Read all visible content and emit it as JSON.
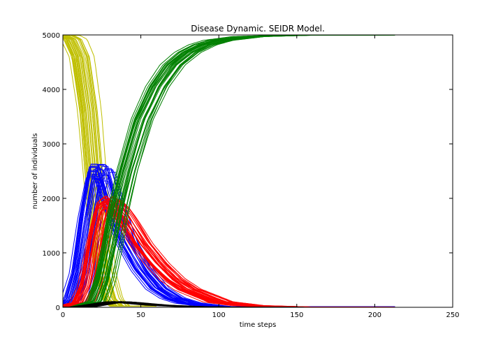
{
  "chart_data": {
    "type": "line",
    "title": "Disease Dynamic. SEIDR Model.",
    "xlabel": "time steps",
    "ylabel": "number of individuals",
    "xlim": [
      0,
      250
    ],
    "ylim": [
      0,
      5000
    ],
    "xticks": [
      "0",
      "50",
      "100",
      "150",
      "200",
      "250"
    ],
    "yticks": [
      "0",
      "1000",
      "2000",
      "3000",
      "4000",
      "5000"
    ],
    "grid": false,
    "legend": "none",
    "runs": 30,
    "series": [
      {
        "key": "S",
        "color": "#bfbf00",
        "x": [
          0,
          5,
          10,
          15,
          20,
          25,
          30,
          35
        ],
        "values": [
          4990,
          4920,
          4600,
          3600,
          1900,
          650,
          150,
          20
        ]
      },
      {
        "key": "E",
        "color": "#0000ff",
        "x": [
          0,
          5,
          10,
          15,
          20,
          25,
          30,
          40,
          50,
          60,
          70,
          80,
          100
        ],
        "values": [
          10,
          150,
          650,
          1700,
          2500,
          2500,
          2000,
          1200,
          700,
          350,
          170,
          80,
          10
        ]
      },
      {
        "key": "I",
        "color": "#ff0000",
        "x": [
          0,
          10,
          15,
          20,
          25,
          30,
          35,
          40,
          50,
          60,
          70,
          80,
          100,
          120,
          150,
          210
        ],
        "values": [
          0,
          80,
          400,
          1200,
          1850,
          1950,
          1800,
          1600,
          1150,
          800,
          520,
          330,
          100,
          30,
          5,
          0
        ]
      },
      {
        "key": "D",
        "color": "#000000",
        "x": [
          0,
          10,
          20,
          30,
          35,
          40,
          60,
          80,
          100,
          150,
          213
        ],
        "values": [
          0,
          5,
          50,
          95,
          100,
          90,
          40,
          15,
          5,
          0,
          0
        ]
      },
      {
        "key": "R",
        "color": "#008000",
        "x": [
          0,
          10,
          20,
          25,
          30,
          35,
          40,
          50,
          60,
          70,
          80,
          90,
          100,
          120,
          150,
          213
        ],
        "values": [
          0,
          5,
          100,
          500,
          1150,
          1900,
          2500,
          3450,
          4050,
          4450,
          4680,
          4820,
          4900,
          4970,
          4995,
          5000
        ]
      }
    ]
  }
}
